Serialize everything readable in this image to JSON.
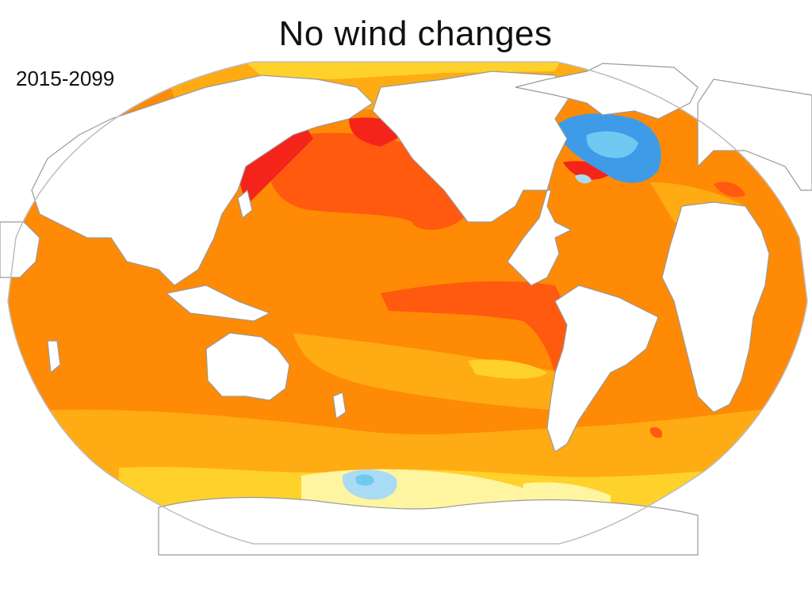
{
  "title": "No wind changes",
  "period": "2015-2099",
  "projection": "robinson",
  "colors": {
    "background": "#ffffff",
    "land": "#ffffff",
    "coastline": "#9a9a9a",
    "border": "#bdbdbd",
    "level_yellow_light": "#fff5a0",
    "level_yellow": "#ffd22b",
    "level_amber": "#ffab14",
    "level_orange": "#ff8a05",
    "level_red_orange": "#ff5a10",
    "level_red": "#f5241a",
    "level_light_blue": "#a9dcf4",
    "level_blue": "#3e9be8",
    "level_cyan": "#6fc9f0"
  }
}
